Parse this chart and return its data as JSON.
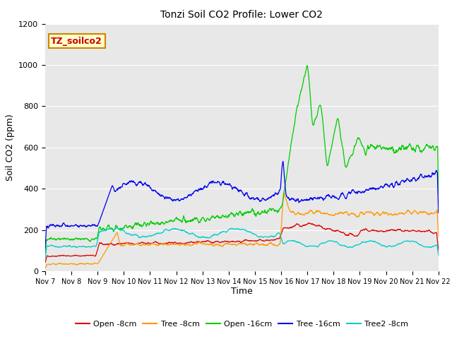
{
  "title": "Tonzi Soil CO2 Profile: Lower CO2",
  "xlabel": "Time",
  "ylabel": "Soil CO2 (ppm)",
  "watermark": "TZ_soilco2",
  "ylim": [
    0,
    1200
  ],
  "plot_bg_color": "#e8e8e8",
  "fig_bg_color": "#ffffff",
  "series": {
    "open_8cm": {
      "color": "#dd0000",
      "label": "Open -8cm"
    },
    "tree_8cm": {
      "color": "#ff9900",
      "label": "Tree -8cm"
    },
    "open_16cm": {
      "color": "#00cc00",
      "label": "Open -16cm"
    },
    "tree_16cm": {
      "color": "#0000ee",
      "label": "Tree -16cm"
    },
    "tree2_8cm": {
      "color": "#00cccc",
      "label": "Tree2 -8cm"
    }
  },
  "xtick_labels": [
    "Nov 7",
    "Nov 8",
    "Nov 9",
    "Nov 10",
    "Nov 11",
    "Nov 12",
    "Nov 13",
    "Nov 14",
    "Nov 15",
    "Nov 16",
    "Nov 17",
    "Nov 18",
    "Nov 19",
    "Nov 20",
    "Nov 21",
    "Nov 22"
  ],
  "num_points": 1500,
  "seed": 42
}
